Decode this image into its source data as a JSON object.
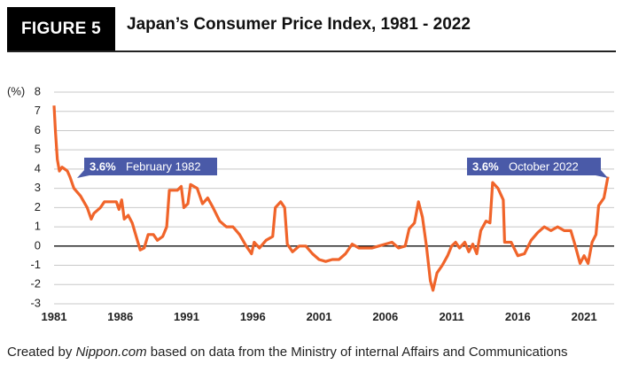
{
  "header": {
    "figure_label": "FIGURE 5",
    "title": "Japan’s Consumer Price Index, 1981 - 2022"
  },
  "footer": {
    "prefix": "Created by",
    "source_name": "Nippon.com",
    "suffix": "based on data from the Ministry of internal Affairs and Communications"
  },
  "chart_data": {
    "type": "line",
    "title": "Japan’s Consumer Price Index, 1981 - 2022",
    "ylabel": "(%)",
    "xlabel": "",
    "ylim": [
      -3,
      8
    ],
    "xlim": [
      1981,
      2022.8
    ],
    "yticks": [
      8,
      7,
      6,
      5,
      4,
      3,
      2,
      1,
      0,
      -1,
      -2,
      -3
    ],
    "xticks": [
      "1981",
      "1986",
      "1991",
      "1996",
      "2001",
      "2006",
      "2011",
      "2016",
      "2021"
    ],
    "grid": true,
    "line_color": "#f0642a",
    "annotation_color": "#4a5aa8",
    "annotations": [
      {
        "value": "3.6%",
        "label": "February 1982",
        "x": 1982.1,
        "y": 3.6
      },
      {
        "value": "3.6%",
        "label": "October 2022",
        "x": 2022.8,
        "y": 3.6
      }
    ],
    "series": [
      {
        "x": [
          1981.0,
          1981.1,
          1981.25,
          1981.4,
          1981.6,
          1982.0,
          1982.2,
          1982.5,
          1983.0,
          1983.5,
          1983.8,
          1984.0,
          1984.5,
          1984.8,
          1985.3,
          1985.7,
          1985.9,
          1986.1,
          1986.3,
          1986.6,
          1986.9,
          1987.2,
          1987.5,
          1987.8,
          1988.1,
          1988.5,
          1988.8,
          1989.2,
          1989.5,
          1989.7,
          1990.3,
          1990.6,
          1990.8,
          1991.1,
          1991.3,
          1991.8,
          1992.2,
          1992.6,
          1993.0,
          1993.5,
          1994.0,
          1994.5,
          1995.0,
          1995.5,
          1995.9,
          1996.1,
          1996.5,
          1997.0,
          1997.5,
          1997.7,
          1998.1,
          1998.4,
          1998.6,
          1999.0,
          1999.5,
          2000.0,
          2000.5,
          2001.0,
          2001.5,
          2002.0,
          2002.5,
          2003.0,
          2003.5,
          2004.0,
          2004.5,
          2005.0,
          2005.5,
          2006.0,
          2006.5,
          2007.0,
          2007.5,
          2007.8,
          2008.2,
          2008.5,
          2008.8,
          2009.1,
          2009.4,
          2009.6,
          2009.9,
          2010.3,
          2010.7,
          2011.0,
          2011.3,
          2011.6,
          2012.0,
          2012.3,
          2012.6,
          2012.9,
          2013.2,
          2013.6,
          2013.9,
          2014.1,
          2014.5,
          2014.9,
          2015.0,
          2015.5,
          2016.0,
          2016.5,
          2017.0,
          2017.5,
          2018.0,
          2018.5,
          2019.0,
          2019.5,
          2020.0,
          2020.3,
          2020.7,
          2021.0,
          2021.3,
          2021.6,
          2021.9,
          2022.1,
          2022.5,
          2022.8
        ],
        "values": [
          7.3,
          6.0,
          4.5,
          3.9,
          4.1,
          3.9,
          3.6,
          3.0,
          2.6,
          2.0,
          1.4,
          1.7,
          2.0,
          2.3,
          2.3,
          2.3,
          1.9,
          2.4,
          1.4,
          1.6,
          1.2,
          0.5,
          -0.2,
          -0.1,
          0.6,
          0.6,
          0.3,
          0.5,
          1.0,
          2.9,
          2.9,
          3.1,
          2.0,
          2.2,
          3.2,
          3.0,
          2.2,
          2.5,
          2.0,
          1.3,
          1.0,
          1.0,
          0.6,
          0.0,
          -0.4,
          0.2,
          -0.1,
          0.3,
          0.5,
          2.0,
          2.3,
          2.0,
          0.1,
          -0.3,
          0.0,
          0.0,
          -0.4,
          -0.7,
          -0.8,
          -0.7,
          -0.7,
          -0.4,
          0.1,
          -0.1,
          -0.1,
          -0.1,
          0.0,
          0.1,
          0.2,
          -0.1,
          0.0,
          0.9,
          1.2,
          2.3,
          1.5,
          0.0,
          -1.8,
          -2.3,
          -1.4,
          -1.0,
          -0.5,
          0.0,
          0.2,
          -0.1,
          0.2,
          -0.3,
          0.1,
          -0.4,
          0.8,
          1.3,
          1.2,
          3.3,
          3.0,
          2.4,
          0.2,
          0.2,
          -0.5,
          -0.4,
          0.3,
          0.7,
          1.0,
          0.8,
          1.0,
          0.8,
          0.8,
          0.1,
          -0.9,
          -0.5,
          -0.9,
          0.2,
          0.6,
          2.1,
          2.5,
          3.6
        ]
      }
    ]
  }
}
